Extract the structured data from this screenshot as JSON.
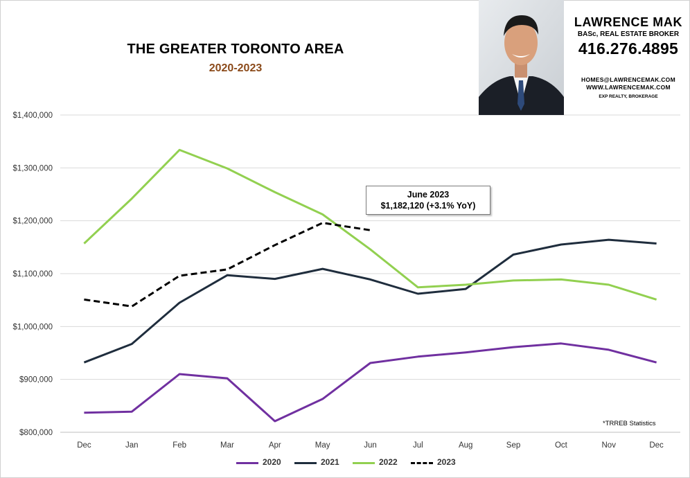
{
  "header": {
    "title": "THE GREATER TORONTO AREA",
    "subtitle": "2020-2023"
  },
  "agent": {
    "name": "LAWRENCE MAK",
    "role": "BASc, REAL ESTATE BROKER",
    "phone": "416.276.4895",
    "email": "HOMES@LAWRENCEMAK.COM",
    "website": "WWW.LAWRENCEMAK.COM",
    "brokerage": "EXP REALTY, BROKERAGE"
  },
  "callout": {
    "line1": "June 2023",
    "line2": "$1,182,120  (+3.1%  YoY)"
  },
  "footnote": "*TRREB Statistics",
  "colors": {
    "s2020": "#7030a0",
    "s2021": "#1f2d3d",
    "s2022": "#92d050",
    "s2023": "#000000",
    "subtitle": "#8b4a1a"
  },
  "chart_data": {
    "type": "line",
    "title": "THE GREATER TORONTO AREA",
    "subtitle": "2020-2023",
    "xlabel": "",
    "ylabel": "",
    "categories": [
      "Dec",
      "Jan",
      "Feb",
      "Mar",
      "Apr",
      "May",
      "Jun",
      "Jul",
      "Aug",
      "Sep",
      "Oct",
      "Nov",
      "Dec"
    ],
    "ylim": [
      800000,
      1400000
    ],
    "yticks": [
      800000,
      900000,
      1000000,
      1100000,
      1200000,
      1300000,
      1400000
    ],
    "ytick_labels": [
      "$800,000",
      "$900,000",
      "$1,000,000",
      "$1,100,000",
      "$1,200,000",
      "$1,300,000",
      "$1,400,000"
    ],
    "grid": true,
    "legend_position": "bottom",
    "series": [
      {
        "name": "2020",
        "color": "#7030a0",
        "dash": false,
        "values": [
          837000,
          839000,
          910000,
          902000,
          821000,
          863000,
          931000,
          943000,
          951000,
          961000,
          968000,
          956000,
          932000
        ]
      },
      {
        "name": "2021",
        "color": "#1f2d3d",
        "dash": false,
        "values": [
          932000,
          967000,
          1045000,
          1097000,
          1090000,
          1109000,
          1089000,
          1062000,
          1071000,
          1136000,
          1155000,
          1164000,
          1157000
        ]
      },
      {
        "name": "2022",
        "color": "#92d050",
        "dash": false,
        "values": [
          1157000,
          1242000,
          1334000,
          1299000,
          1254000,
          1212000,
          1146000,
          1074000,
          1079000,
          1087000,
          1089000,
          1079000,
          1051000
        ]
      },
      {
        "name": "2023",
        "color": "#000000",
        "dash": true,
        "values": [
          1051000,
          1038000,
          1096000,
          1108000,
          1154000,
          1196000,
          1182120,
          null,
          null,
          null,
          null,
          null,
          null
        ]
      }
    ],
    "annotations": [
      "June 2023",
      "$1,182,120  (+3.1%  YoY)",
      "*TRREB Statistics"
    ]
  }
}
